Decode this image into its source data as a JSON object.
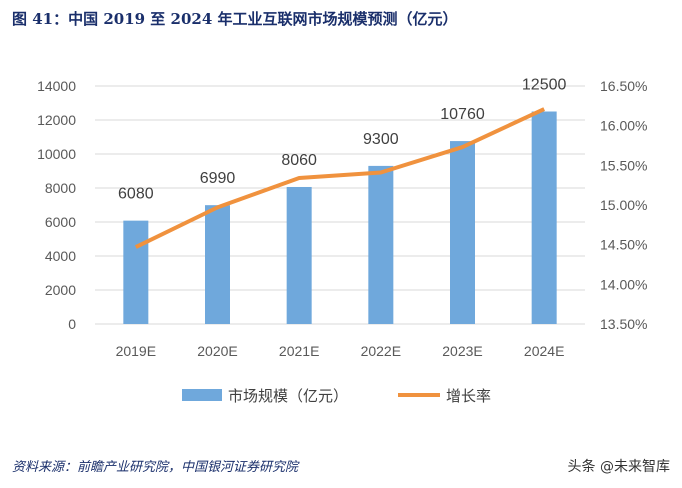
{
  "title": "图 41：中国 2019 至 2024 年工业互联网市场规模预测（亿元）",
  "source": "资料来源：前瞻产业研究院，中国银河证券研究院",
  "watermark": "头条 @未来智库",
  "chart_data": {
    "type": "bar+line",
    "categories": [
      "2019E",
      "2020E",
      "2021E",
      "2022E",
      "2023E",
      "2024E"
    ],
    "series": [
      {
        "name": "市场规模（亿元）",
        "type": "bar",
        "axis": "left",
        "values": [
          6080,
          6990,
          8060,
          9300,
          10760,
          12500
        ],
        "color": "#6FA8DC"
      },
      {
        "name": "增长率",
        "type": "line",
        "axis": "right",
        "values": [
          14.47,
          14.97,
          15.34,
          15.41,
          15.73,
          16.21
        ],
        "color": "#F0923E"
      }
    ],
    "data_labels": [
      "6080",
      "6990",
      "8060",
      "9300",
      "10760",
      "12500"
    ],
    "y_left": {
      "range": [
        0,
        14000
      ],
      "ticks": [
        "0",
        "2000",
        "4000",
        "6000",
        "8000",
        "10000",
        "12000",
        "14000"
      ]
    },
    "y_right": {
      "range": [
        13.5,
        16.5
      ],
      "ticks": [
        "13.50%",
        "14.00%",
        "14.50%",
        "15.00%",
        "15.50%",
        "16.00%",
        "16.50%"
      ]
    },
    "grid": true,
    "legend_position": "bottom"
  }
}
